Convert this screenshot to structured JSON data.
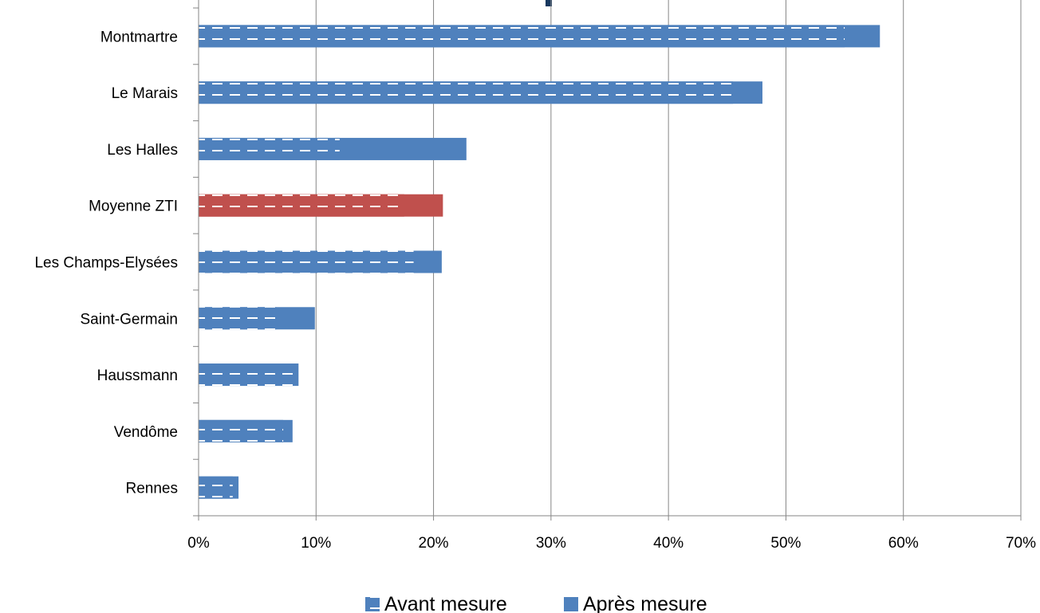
{
  "chart_data": {
    "type": "bar",
    "orientation": "horizontal",
    "categories": [
      "Montmartre",
      "Le Marais",
      "Les Halles",
      "Moyenne ZTI",
      "Les Champs-Elysées",
      "Saint-Germain",
      "Haussmann",
      "Vendôme",
      "Rennes"
    ],
    "series": [
      {
        "name": "Avant mesure",
        "values": [
          55,
          45.5,
          12,
          17.5,
          18.3,
          6.6,
          8.5,
          7.2,
          2.9
        ],
        "pattern": "dashed-stripes"
      },
      {
        "name": "Après mesure",
        "values": [
          58,
          48,
          22.8,
          20.8,
          20.7,
          9.9,
          8.5,
          8.0,
          3.4
        ],
        "pattern": "solid"
      }
    ],
    "highlight_category": "Moyenne ZTI",
    "xlim": [
      0,
      70
    ],
    "xticks": [
      "0%",
      "10%",
      "20%",
      "30%",
      "40%",
      "50%",
      "60%",
      "70%"
    ],
    "grid": "vertical",
    "legend_position": "bottom",
    "xlabel": "",
    "ylabel": "",
    "title": ""
  },
  "colors": {
    "bar": "#4f81bd",
    "highlight": "#c0504d",
    "grid": "#868686",
    "axis": "#868686",
    "stripe": "#ffffff",
    "top_marker": "#17375e"
  }
}
